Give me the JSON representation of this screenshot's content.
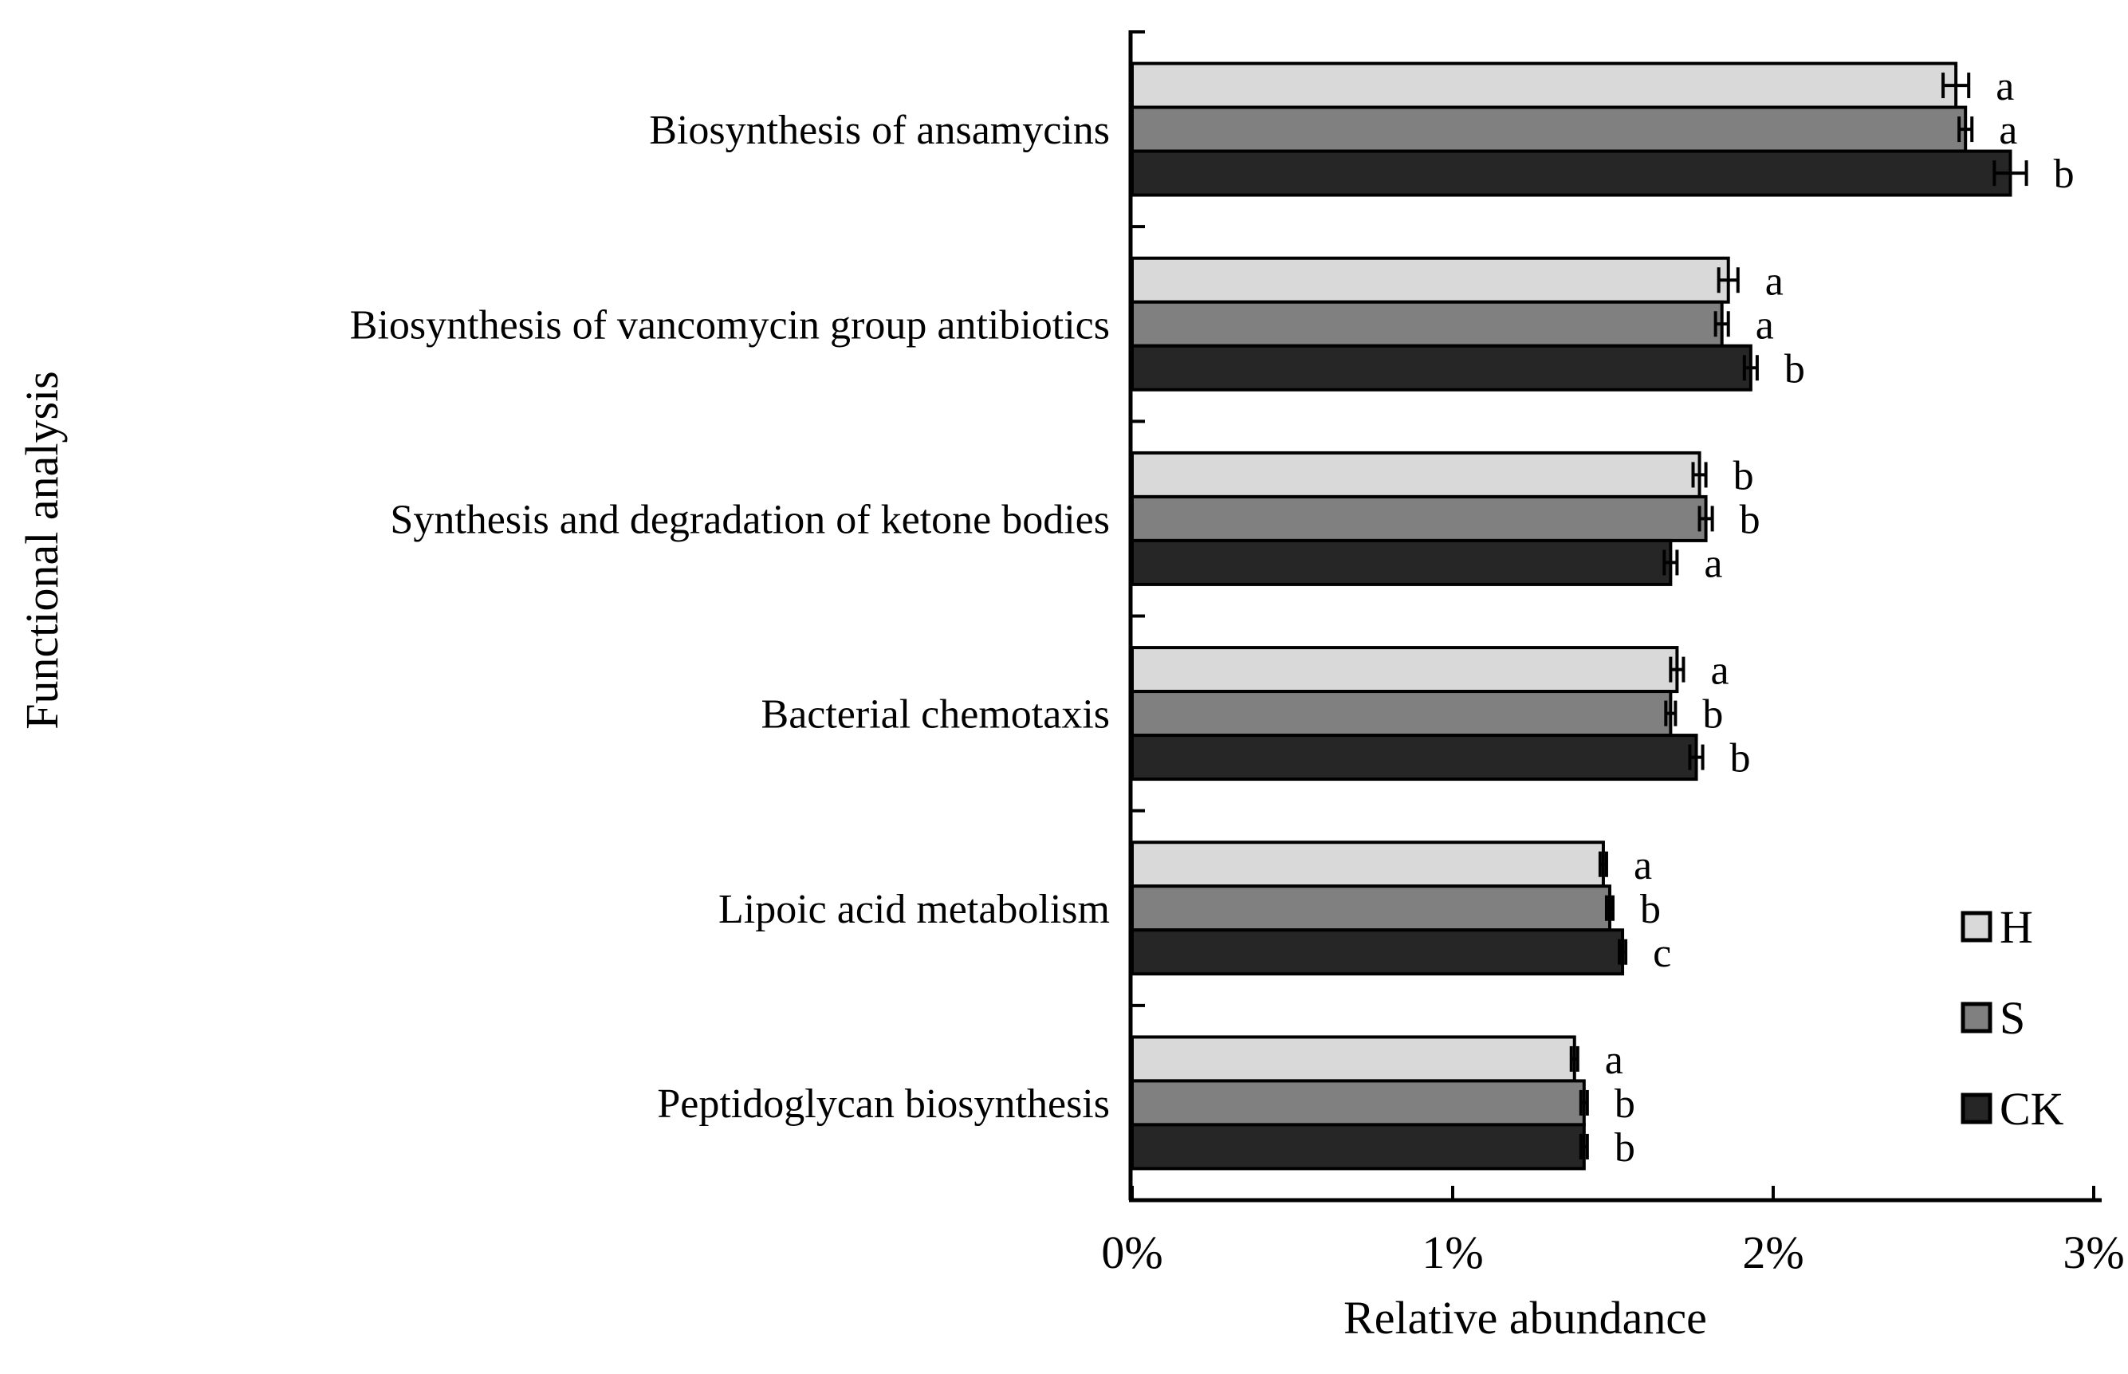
{
  "figure": {
    "background": "#ffffff",
    "axis_color": "#000000",
    "text_color": "#000000"
  },
  "chart_data": {
    "type": "bar",
    "orientation": "horizontal",
    "title": "",
    "xlabel": "Relative abundance",
    "ylabel": "Functional analysis",
    "xlim": [
      0,
      3
    ],
    "x_tick_labels": [
      "0%",
      "1%",
      "2%",
      "3%"
    ],
    "x_tick_values": [
      0,
      1,
      2,
      3
    ],
    "grid": false,
    "error_bars": true,
    "legend_position": "inside-right-lower",
    "categories": [
      "Biosynthesis of ansamycins",
      "Biosynthesis of vancomycin group antibiotics",
      "Synthesis and degradation of ketone bodies",
      "Bacterial chemotaxis",
      "Lipoic acid metabolism",
      "Peptidoglycan biosynthesis"
    ],
    "series": [
      {
        "name": "H",
        "color": "#d9d9d9",
        "border": "#000000",
        "values": [
          2.57,
          1.86,
          1.77,
          1.7,
          1.47,
          1.38
        ],
        "errors": [
          0.04,
          0.03,
          0.02,
          0.02,
          0.01,
          0.01
        ],
        "letters": [
          "a",
          "a",
          "b",
          "a",
          "a",
          "a"
        ]
      },
      {
        "name": "S",
        "color": "#808080",
        "border": "#000000",
        "values": [
          2.6,
          1.84,
          1.79,
          1.68,
          1.49,
          1.41
        ],
        "errors": [
          0.02,
          0.02,
          0.02,
          0.015,
          0.01,
          0.01
        ],
        "letters": [
          "a",
          "a",
          "b",
          "b",
          "b",
          "b"
        ]
      },
      {
        "name": "CK",
        "color": "#262626",
        "border": "#000000",
        "values": [
          2.74,
          1.93,
          1.68,
          1.76,
          1.53,
          1.41
        ],
        "errors": [
          0.05,
          0.02,
          0.02,
          0.02,
          0.01,
          0.01
        ],
        "letters": [
          "b",
          "b",
          "a",
          "b",
          "c",
          "b"
        ]
      }
    ]
  }
}
